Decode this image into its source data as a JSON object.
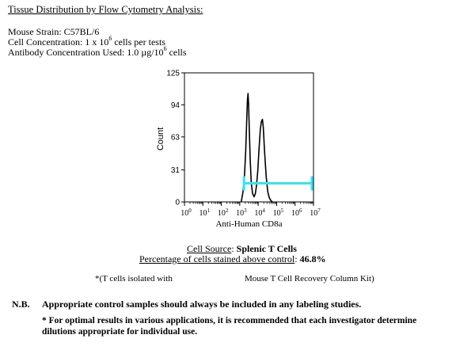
{
  "header": {
    "title": "Tissue Distribution by Flow Cytometry Analysis:",
    "mouse_strain": "Mouse Strain:  C57BL/6",
    "cell_conc_prefix": "Cell Concentration: 1 x 10",
    "cell_conc_exp": "6",
    "cell_conc_suffix": " cells per tests",
    "ab_conc_prefix": "Antibody Concentration Used: 1.0 µg/10",
    "ab_conc_exp": "6",
    "ab_conc_suffix": " cells"
  },
  "chart_data": {
    "type": "area",
    "xlabel": "Anti-Human CD8a",
    "ylabel": "Count",
    "x_scale": "log",
    "xlim": [
      1,
      10000000
    ],
    "ylim": [
      0,
      125
    ],
    "x_ticks": [
      {
        "base": "10",
        "exp": "0"
      },
      {
        "base": "10",
        "exp": "1"
      },
      {
        "base": "10",
        "exp": "2"
      },
      {
        "base": "10",
        "exp": "3"
      },
      {
        "base": "10",
        "exp": "4"
      },
      {
        "base": "10",
        "exp": "5"
      },
      {
        "base": "10",
        "exp": "6"
      },
      {
        "base": "10",
        "exp": "7"
      }
    ],
    "y_ticks": [
      "0",
      "31",
      "63",
      "94",
      "125"
    ],
    "y_tick_values": [
      0,
      31,
      63,
      94,
      125
    ],
    "series": [
      {
        "points": [
          [
            1200,
            0
          ],
          [
            1500,
            10
          ],
          [
            1800,
            25
          ],
          [
            2100,
            50
          ],
          [
            2400,
            80
          ],
          [
            2600,
            98
          ],
          [
            2800,
            105
          ],
          [
            3000,
            95
          ],
          [
            3300,
            70
          ],
          [
            3700,
            40
          ],
          [
            4200,
            18
          ],
          [
            5000,
            8
          ],
          [
            6000,
            5
          ],
          [
            7000,
            8
          ],
          [
            8000,
            15
          ],
          [
            9500,
            30
          ],
          [
            11000,
            50
          ],
          [
            13000,
            70
          ],
          [
            15000,
            78
          ],
          [
            17000,
            80
          ],
          [
            19000,
            72
          ],
          [
            22000,
            50
          ],
          [
            27000,
            25
          ],
          [
            33000,
            10
          ],
          [
            40000,
            4
          ],
          [
            50000,
            1
          ],
          [
            60000,
            0
          ]
        ]
      }
    ],
    "gate": {
      "x_start": 1700,
      "x_end": 10000000,
      "y": 18,
      "color": "#33e5f0"
    }
  },
  "cell_source": {
    "label": "Cell Source",
    "value": "Splenic T Cells"
  },
  "percentage": {
    "label": "Percentage of cells stained above control",
    "value": "46.8%"
  },
  "footnote": {
    "left": "*(T cells isolated with",
    "right": "Mouse T Cell Recovery Column Kit)"
  },
  "notes": {
    "nb_label": "N.B.",
    "nb_text": "Appropriate control samples should always be included in any labeling studies.",
    "star_line1": "* For optimal results in various applications, it is recommended that each investigator determine",
    "star_line2": "dilutions appropriate for individual use."
  }
}
